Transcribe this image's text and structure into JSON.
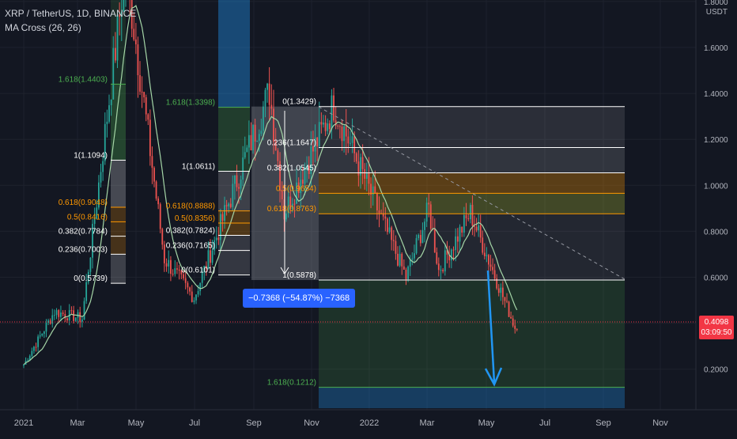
{
  "header": {
    "symbol_line": "XRP / TetherUS, 1D, BINANCE",
    "indicator_line": "MA Cross (26, 26)"
  },
  "price_axis": {
    "unit": "USDT",
    "ticks": [
      "1.8000",
      "1.6000",
      "1.4000",
      "1.2000",
      "1.0000",
      "0.8000",
      "0.6000",
      "0.4000",
      "0.2000"
    ]
  },
  "time_axis": {
    "ticks": [
      "2021",
      "Mar",
      "May",
      "Jul",
      "Sep",
      "Nov",
      "2022",
      "Mar",
      "May",
      "Jul",
      "Sep",
      "Nov"
    ]
  },
  "last_price": {
    "value": "0.4098",
    "countdown": "03:09:50",
    "color": "#f23645"
  },
  "fib_1": {
    "levels": [
      "1.618(1.4403)",
      "1(1.1094)",
      "0.618(0.9048)",
      "0.5(0.8416)",
      "0.382(0.7784)",
      "0.236(0.7003)",
      "0(0.5739)"
    ],
    "top_partial": "1.618(1.4403)"
  },
  "fib_2": {
    "levels": [
      "1.618(1.3398)",
      "1(1.0611)",
      "0.618(0.8888)",
      "0.5(0.8356)",
      "0.382(0.7824)",
      "0.236(0.7165)",
      "0(0.6101)"
    ]
  },
  "fib_3": {
    "levels": [
      "0(1.3429)",
      "0.236(1.1647)",
      "0.382(1.0545)",
      "0.5(0.9654)",
      "0.618(0.8763)",
      "1(0.5878)",
      "1.618(0.1212)"
    ]
  },
  "measure": {
    "label": "−0.7368 (−54.87%) −7368"
  },
  "colors": {
    "background": "#131722",
    "up_candle": "#26a69a",
    "down_candle": "#ef5350",
    "ma_line": "#a5d6a7",
    "fib_orange": "#ff9800",
    "fib_green": "#4caf50",
    "arrow_blue": "#2196f3"
  },
  "chart_data": {
    "type": "candlestick",
    "title": "XRP / TetherUS, 1D, BINANCE",
    "ylim": [
      0.12,
      1.82
    ],
    "moving_average": "MA Cross (26, 26)",
    "swings": [
      {
        "date": "2021-01-01",
        "price": 0.22
      },
      {
        "date": "2021-02-01",
        "price": 0.45
      },
      {
        "date": "2021-03-01",
        "price": 0.42
      },
      {
        "date": "2021-04-14",
        "price": 1.96
      },
      {
        "date": "2021-05-23",
        "price": 0.68
      },
      {
        "date": "2021-06-22",
        "price": 0.51
      },
      {
        "date": "2021-09-06",
        "price": 1.41
      },
      {
        "date": "2021-09-21",
        "price": 0.88
      },
      {
        "date": "2021-11-10",
        "price": 1.35
      },
      {
        "date": "2022-01-22",
        "price": 0.6
      },
      {
        "date": "2022-02-14",
        "price": 0.9
      },
      {
        "date": "2022-02-24",
        "price": 0.63
      },
      {
        "date": "2022-03-28",
        "price": 0.88
      },
      {
        "date": "2022-05-12",
        "price": 0.38
      },
      {
        "date": "2022-05-16",
        "price": 0.41
      }
    ],
    "last_price": 0.4098
  }
}
